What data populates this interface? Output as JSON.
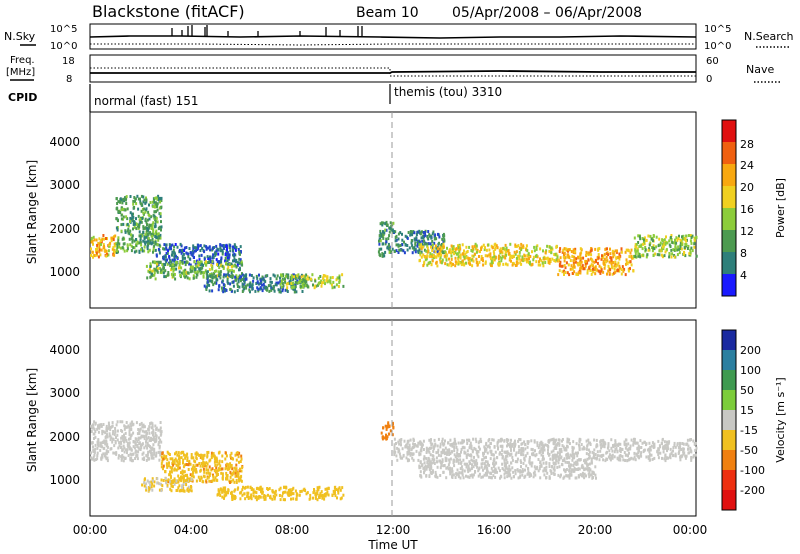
{
  "header": {
    "station": "Blackstone (fitACF)",
    "beam": "Beam 10",
    "date_range": "05/Apr/2008 – 06/Apr/2008"
  },
  "sky_panel": {
    "left_label": "N.Sky",
    "right_label": "N.Search",
    "left_ticks": [
      "10^5",
      "10^0"
    ],
    "right_ticks": [
      "10^5",
      "10^0"
    ]
  },
  "freq_panel": {
    "left_label_top": "Freq.",
    "left_label_bottom": "[MHz]",
    "right_label": "Nave",
    "left_ticks": [
      "18",
      "8"
    ],
    "right_ticks": [
      "60",
      "0"
    ]
  },
  "cpid": {
    "label": "CPID",
    "modes": [
      {
        "name": "normal (fast) 151",
        "start_hour": 0
      },
      {
        "name": "themis (tou) 3310",
        "start_hour": 12
      }
    ]
  },
  "chart_data": [
    {
      "type": "heatmap",
      "name": "power",
      "ylabel": "Slant Range [km]",
      "yticks": [
        "1000",
        "2000",
        "3000",
        "4000"
      ],
      "ylim": [
        0,
        4500
      ],
      "xlim": [
        0,
        24
      ],
      "colorbar": {
        "label": "Power [dB]",
        "ticks": [
          "4",
          "8",
          "12",
          "16",
          "20",
          "24",
          "28"
        ],
        "range": [
          0,
          32
        ],
        "colors": [
          "#1a1aff",
          "#2244cc",
          "#2e7f7a",
          "#4c9a50",
          "#8ccc3a",
          "#f0d020",
          "#f8a810",
          "#f06010",
          "#e01010"
        ]
      },
      "bands": [
        {
          "x": [
            0.0,
            1.0
          ],
          "y": [
            1200,
            1700
          ],
          "level": 24
        },
        {
          "x": [
            1.0,
            2.8
          ],
          "y": [
            1300,
            2600
          ],
          "level": 14
        },
        {
          "x": [
            2.6,
            6.0
          ],
          "y": [
            1000,
            1500
          ],
          "level": 8
        },
        {
          "x": [
            2.2,
            6.0
          ],
          "y": [
            700,
            1100
          ],
          "level": 16
        },
        {
          "x": [
            4.5,
            8.5
          ],
          "y": [
            400,
            800
          ],
          "level": 10
        },
        {
          "x": [
            7.5,
            10.0
          ],
          "y": [
            500,
            800
          ],
          "level": 18
        },
        {
          "x": [
            11.4,
            12.0
          ],
          "y": [
            1200,
            2000
          ],
          "level": 12
        },
        {
          "x": [
            12.0,
            14.0
          ],
          "y": [
            1300,
            1800
          ],
          "level": 10
        },
        {
          "x": [
            13.0,
            18.5
          ],
          "y": [
            1000,
            1500
          ],
          "level": 22
        },
        {
          "x": [
            18.5,
            21.5
          ],
          "y": [
            800,
            1400
          ],
          "level": 26
        },
        {
          "x": [
            21.5,
            24.0
          ],
          "y": [
            1200,
            1700
          ],
          "level": 18
        }
      ]
    },
    {
      "type": "heatmap",
      "name": "velocity",
      "ylabel": "Slant Range [km]",
      "yticks": [
        "1000",
        "2000",
        "3000",
        "4000"
      ],
      "ylim": [
        0,
        4500
      ],
      "xlim": [
        0,
        24
      ],
      "colorbar": {
        "label": "Velocity [m s⁻¹]",
        "ticks": [
          "200",
          "100",
          "50",
          "15",
          "-15",
          "-50",
          "-100",
          "-200"
        ],
        "colors": [
          "#1a2aa0",
          "#2b7fa0",
          "#3f9a50",
          "#7ccc3a",
          "#c8c8c4",
          "#f0c020",
          "#f08010",
          "#ee3010",
          "#e01010"
        ]
      },
      "bands": [
        {
          "x": [
            0.0,
            2.8
          ],
          "y": [
            1300,
            2200
          ],
          "level": 0
        },
        {
          "x": [
            2.8,
            6.0
          ],
          "y": [
            800,
            1500
          ],
          "level": -40
        },
        {
          "x": [
            2.0,
            4.0
          ],
          "y": [
            600,
            900
          ],
          "level": -20
        },
        {
          "x": [
            5.0,
            10.0
          ],
          "y": [
            400,
            700
          ],
          "level": -30
        },
        {
          "x": [
            11.5,
            12.0
          ],
          "y": [
            1800,
            2200
          ],
          "level": -80
        },
        {
          "x": [
            12.0,
            24.0
          ],
          "y": [
            1300,
            1800
          ],
          "level": 0
        },
        {
          "x": [
            13.0,
            20.0
          ],
          "y": [
            900,
            1300
          ],
          "level": 0
        }
      ]
    }
  ],
  "x_axis": {
    "label": "Time UT",
    "ticks": [
      "00:00",
      "04:00",
      "08:00",
      "12:00",
      "16:00",
      "20:00",
      "00:00"
    ]
  }
}
